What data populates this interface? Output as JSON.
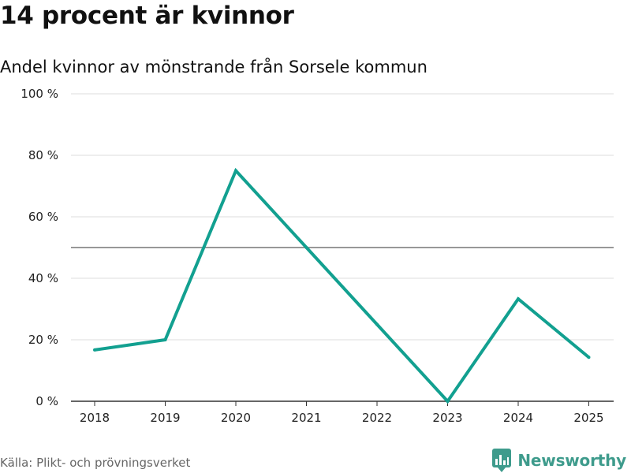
{
  "title": "14 procent är kvinnor",
  "subtitle": "Andel kvinnor av mönstrande från Sorsele kommun",
  "source": "Källa: Plikt- och prövningsverket",
  "brand": {
    "name": "Newsworthy",
    "icon": "newsworthy-logo-icon"
  },
  "colors": {
    "line": "#12a090",
    "reference": "#777777",
    "grid": "#dddddd",
    "axis": "#333333",
    "brand": "#3e9b8c"
  },
  "chart_data": {
    "type": "line",
    "title": "14 procent är kvinnor",
    "subtitle": "Andel kvinnor av mönstrande från Sorsele kommun",
    "x": [
      "2018",
      "2019",
      "2020",
      "2021",
      "2022",
      "2023",
      "2024",
      "2025"
    ],
    "series": [
      {
        "name": "Andel kvinnor",
        "values": [
          16.7,
          20,
          75,
          50,
          25,
          0,
          33.3,
          14.3
        ]
      }
    ],
    "reference_line": 50,
    "ylim": [
      0,
      100
    ],
    "yticks": [
      0,
      20,
      40,
      60,
      80,
      100
    ],
    "ytick_labels": [
      "0 %",
      "20 %",
      "40 %",
      "60 %",
      "80 %",
      "100 %"
    ],
    "grid": true,
    "xlabel": "",
    "ylabel": ""
  }
}
